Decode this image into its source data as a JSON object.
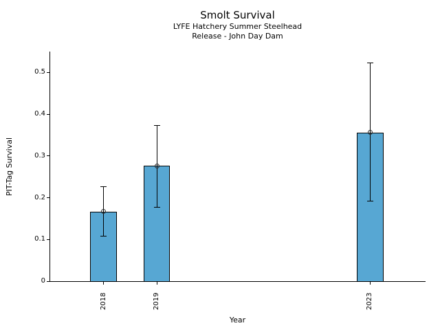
{
  "chart_data": {
    "type": "bar",
    "title": "Smolt Survival",
    "subtitle1": "LYFE Hatchery Summer Steelhead",
    "subtitle2": "Release - John Day Dam",
    "xlabel": "Year",
    "ylabel": "PIT-Tag Survival",
    "categories": [
      "2018",
      "2019",
      "2023"
    ],
    "x_values": [
      2018,
      2019,
      2023
    ],
    "values": [
      0.167,
      0.276,
      0.356
    ],
    "error_low": [
      0.108,
      0.178,
      0.193
    ],
    "error_high": [
      0.227,
      0.373,
      0.524
    ],
    "y_ticks": [
      0,
      0.1,
      0.2,
      0.3,
      0.4,
      0.5
    ],
    "y_tick_labels": [
      "0",
      "0.1",
      "0.2",
      "0.3",
      "0.4",
      "0.5"
    ],
    "ylim": [
      0,
      0.55
    ],
    "xlim": [
      2017.0,
      2024.03
    ],
    "bar_width_years": 0.5,
    "bar_color": "#57a7d3",
    "bar_edge_color": "#000000",
    "error_color": "#000000",
    "marker": "open-circle",
    "grid": false,
    "legend": null,
    "x_tick_rotation_deg": 90
  }
}
